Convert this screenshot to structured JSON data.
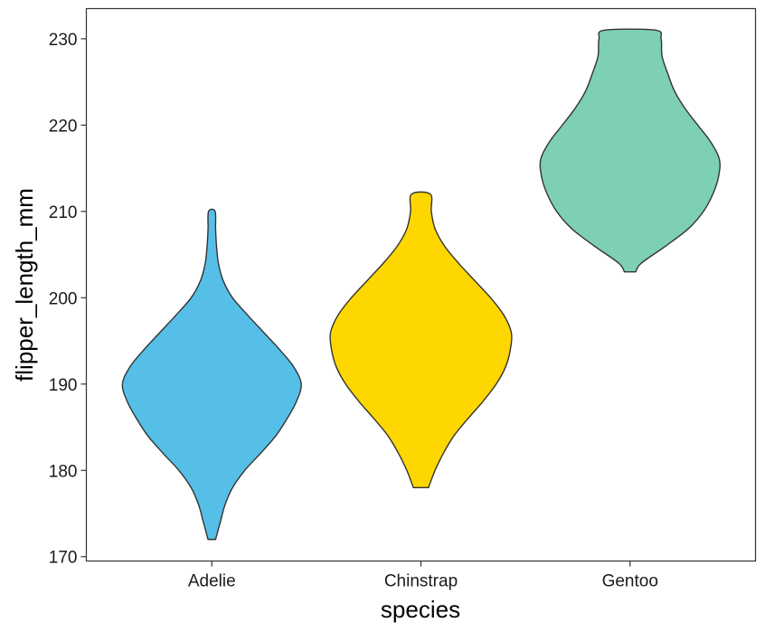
{
  "chart_data": {
    "type": "violin",
    "xlabel": "species",
    "ylabel": "flipper_length_mm",
    "categories": [
      "Adelie",
      "Chinstrap",
      "Gentoo"
    ],
    "ylim": [
      169.5,
      233.5
    ],
    "yticks": [
      170,
      180,
      190,
      200,
      210,
      220,
      230
    ],
    "grid": false,
    "series": [
      {
        "category": "Adelie",
        "color": "#56BFE8",
        "min": 172,
        "max": 210,
        "density_profile": [
          {
            "y": 172,
            "w": 0.04
          },
          {
            "y": 174,
            "w": 0.09
          },
          {
            "y": 176,
            "w": 0.14
          },
          {
            "y": 178,
            "w": 0.22
          },
          {
            "y": 180,
            "w": 0.35
          },
          {
            "y": 182,
            "w": 0.52
          },
          {
            "y": 184,
            "w": 0.68
          },
          {
            "y": 186,
            "w": 0.8
          },
          {
            "y": 188,
            "w": 0.9
          },
          {
            "y": 190,
            "w": 0.95
          },
          {
            "y": 192,
            "w": 0.87
          },
          {
            "y": 194,
            "w": 0.72
          },
          {
            "y": 196,
            "w": 0.55
          },
          {
            "y": 198,
            "w": 0.38
          },
          {
            "y": 200,
            "w": 0.22
          },
          {
            "y": 202,
            "w": 0.12
          },
          {
            "y": 204,
            "w": 0.07
          },
          {
            "y": 206,
            "w": 0.05
          },
          {
            "y": 208,
            "w": 0.04
          },
          {
            "y": 210,
            "w": 0.035
          }
        ]
      },
      {
        "category": "Chinstrap",
        "color": "#FFD700",
        "min": 178,
        "max": 212,
        "density_profile": [
          {
            "y": 178,
            "w": 0.08
          },
          {
            "y": 180,
            "w": 0.15
          },
          {
            "y": 182,
            "w": 0.24
          },
          {
            "y": 184,
            "w": 0.35
          },
          {
            "y": 186,
            "w": 0.5
          },
          {
            "y": 188,
            "w": 0.66
          },
          {
            "y": 190,
            "w": 0.8
          },
          {
            "y": 192,
            "w": 0.9
          },
          {
            "y": 194,
            "w": 0.95
          },
          {
            "y": 196,
            "w": 0.96
          },
          {
            "y": 198,
            "w": 0.88
          },
          {
            "y": 200,
            "w": 0.74
          },
          {
            "y": 202,
            "w": 0.57
          },
          {
            "y": 204,
            "w": 0.4
          },
          {
            "y": 206,
            "w": 0.25
          },
          {
            "y": 208,
            "w": 0.15
          },
          {
            "y": 210,
            "w": 0.11
          },
          {
            "y": 212,
            "w": 0.1
          }
        ]
      },
      {
        "category": "Gentoo",
        "color": "#7DCFB6",
        "min": 203,
        "max": 231,
        "density_profile": [
          {
            "y": 203,
            "w": 0.06
          },
          {
            "y": 204,
            "w": 0.12
          },
          {
            "y": 206,
            "w": 0.38
          },
          {
            "y": 208,
            "w": 0.62
          },
          {
            "y": 210,
            "w": 0.78
          },
          {
            "y": 212,
            "w": 0.88
          },
          {
            "y": 214,
            "w": 0.94
          },
          {
            "y": 216,
            "w": 0.95
          },
          {
            "y": 218,
            "w": 0.86
          },
          {
            "y": 220,
            "w": 0.72
          },
          {
            "y": 222,
            "w": 0.58
          },
          {
            "y": 224,
            "w": 0.47
          },
          {
            "y": 226,
            "w": 0.4
          },
          {
            "y": 228,
            "w": 0.34
          },
          {
            "y": 230,
            "w": 0.33
          },
          {
            "y": 231,
            "w": 0.27
          }
        ]
      }
    ]
  }
}
